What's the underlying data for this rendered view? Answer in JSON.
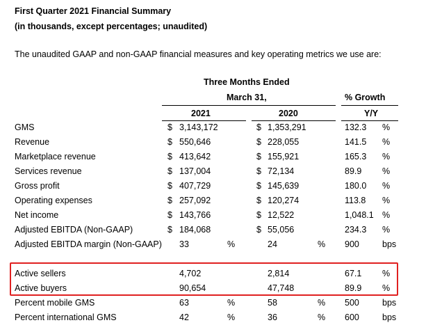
{
  "header": {
    "title": "First Quarter 2021 Financial Summary",
    "subtitle": "(in thousands, except percentages; unaudited)",
    "intro": "The unaudited GAAP and non-GAAP financial measures and key operating metrics we use are:"
  },
  "table_header": {
    "period_line1": "Three Months Ended",
    "period_line2": "March 31,",
    "growth_line1": "% Growth",
    "col_2021": "2021",
    "col_2020": "2020",
    "col_yy": "Y/Y"
  },
  "rows": [
    {
      "label": "GMS",
      "cur2021": "$",
      "v2021": "3,143,172",
      "cur2020": "$",
      "v2020": "1,353,291",
      "growth": "132.3",
      "unit": "%"
    },
    {
      "label": "Revenue",
      "cur2021": "$",
      "v2021": "550,646",
      "cur2020": "$",
      "v2020": "228,055",
      "growth": "141.5",
      "unit": "%"
    },
    {
      "label": "Marketplace revenue",
      "cur2021": "$",
      "v2021": "413,642",
      "cur2020": "$",
      "v2020": "155,921",
      "growth": "165.3",
      "unit": "%"
    },
    {
      "label": "Services revenue",
      "cur2021": "$",
      "v2021": "137,004",
      "cur2020": "$",
      "v2020": "72,134",
      "growth": "89.9",
      "unit": "%"
    },
    {
      "label": "Gross profit",
      "cur2021": "$",
      "v2021": "407,729",
      "cur2020": "$",
      "v2020": "145,639",
      "growth": "180.0",
      "unit": "%"
    },
    {
      "label": "Operating expenses",
      "cur2021": "$",
      "v2021": "257,092",
      "cur2020": "$",
      "v2020": "120,274",
      "growth": "113.8",
      "unit": "%"
    },
    {
      "label": "Net income",
      "cur2021": "$",
      "v2021": "143,766",
      "cur2020": "$",
      "v2020": "12,522",
      "growth": "1,048.1",
      "unit": "%"
    },
    {
      "label": "Adjusted EBITDA (Non-GAAP)",
      "cur2021": "$",
      "v2021": "184,068",
      "cur2020": "$",
      "v2020": "55,056",
      "growth": "234.3",
      "unit": "%"
    },
    {
      "label": "Adjusted EBITDA margin (Non-GAAP)",
      "v2021": "33",
      "pct2021": "%",
      "v2020": "24",
      "pct2020": "%",
      "growth": "900",
      "unit": "bps"
    },
    {
      "label": "Active sellers",
      "v2021": "4,702",
      "v2020": "2,814",
      "growth": "67.1",
      "unit": "%"
    },
    {
      "label": "Active buyers",
      "v2021": "90,654",
      "v2020": "47,748",
      "growth": "89.9",
      "unit": "%"
    },
    {
      "label": "Percent mobile GMS",
      "v2021": "63",
      "pct2021": "%",
      "v2020": "58",
      "pct2020": "%",
      "growth": "500",
      "unit": "bps"
    },
    {
      "label": "Percent international GMS",
      "v2021": "42",
      "pct2021": "%",
      "v2020": "36",
      "pct2020": "%",
      "growth": "600",
      "unit": "bps"
    }
  ],
  "highlight": {
    "color": "#e02020"
  }
}
